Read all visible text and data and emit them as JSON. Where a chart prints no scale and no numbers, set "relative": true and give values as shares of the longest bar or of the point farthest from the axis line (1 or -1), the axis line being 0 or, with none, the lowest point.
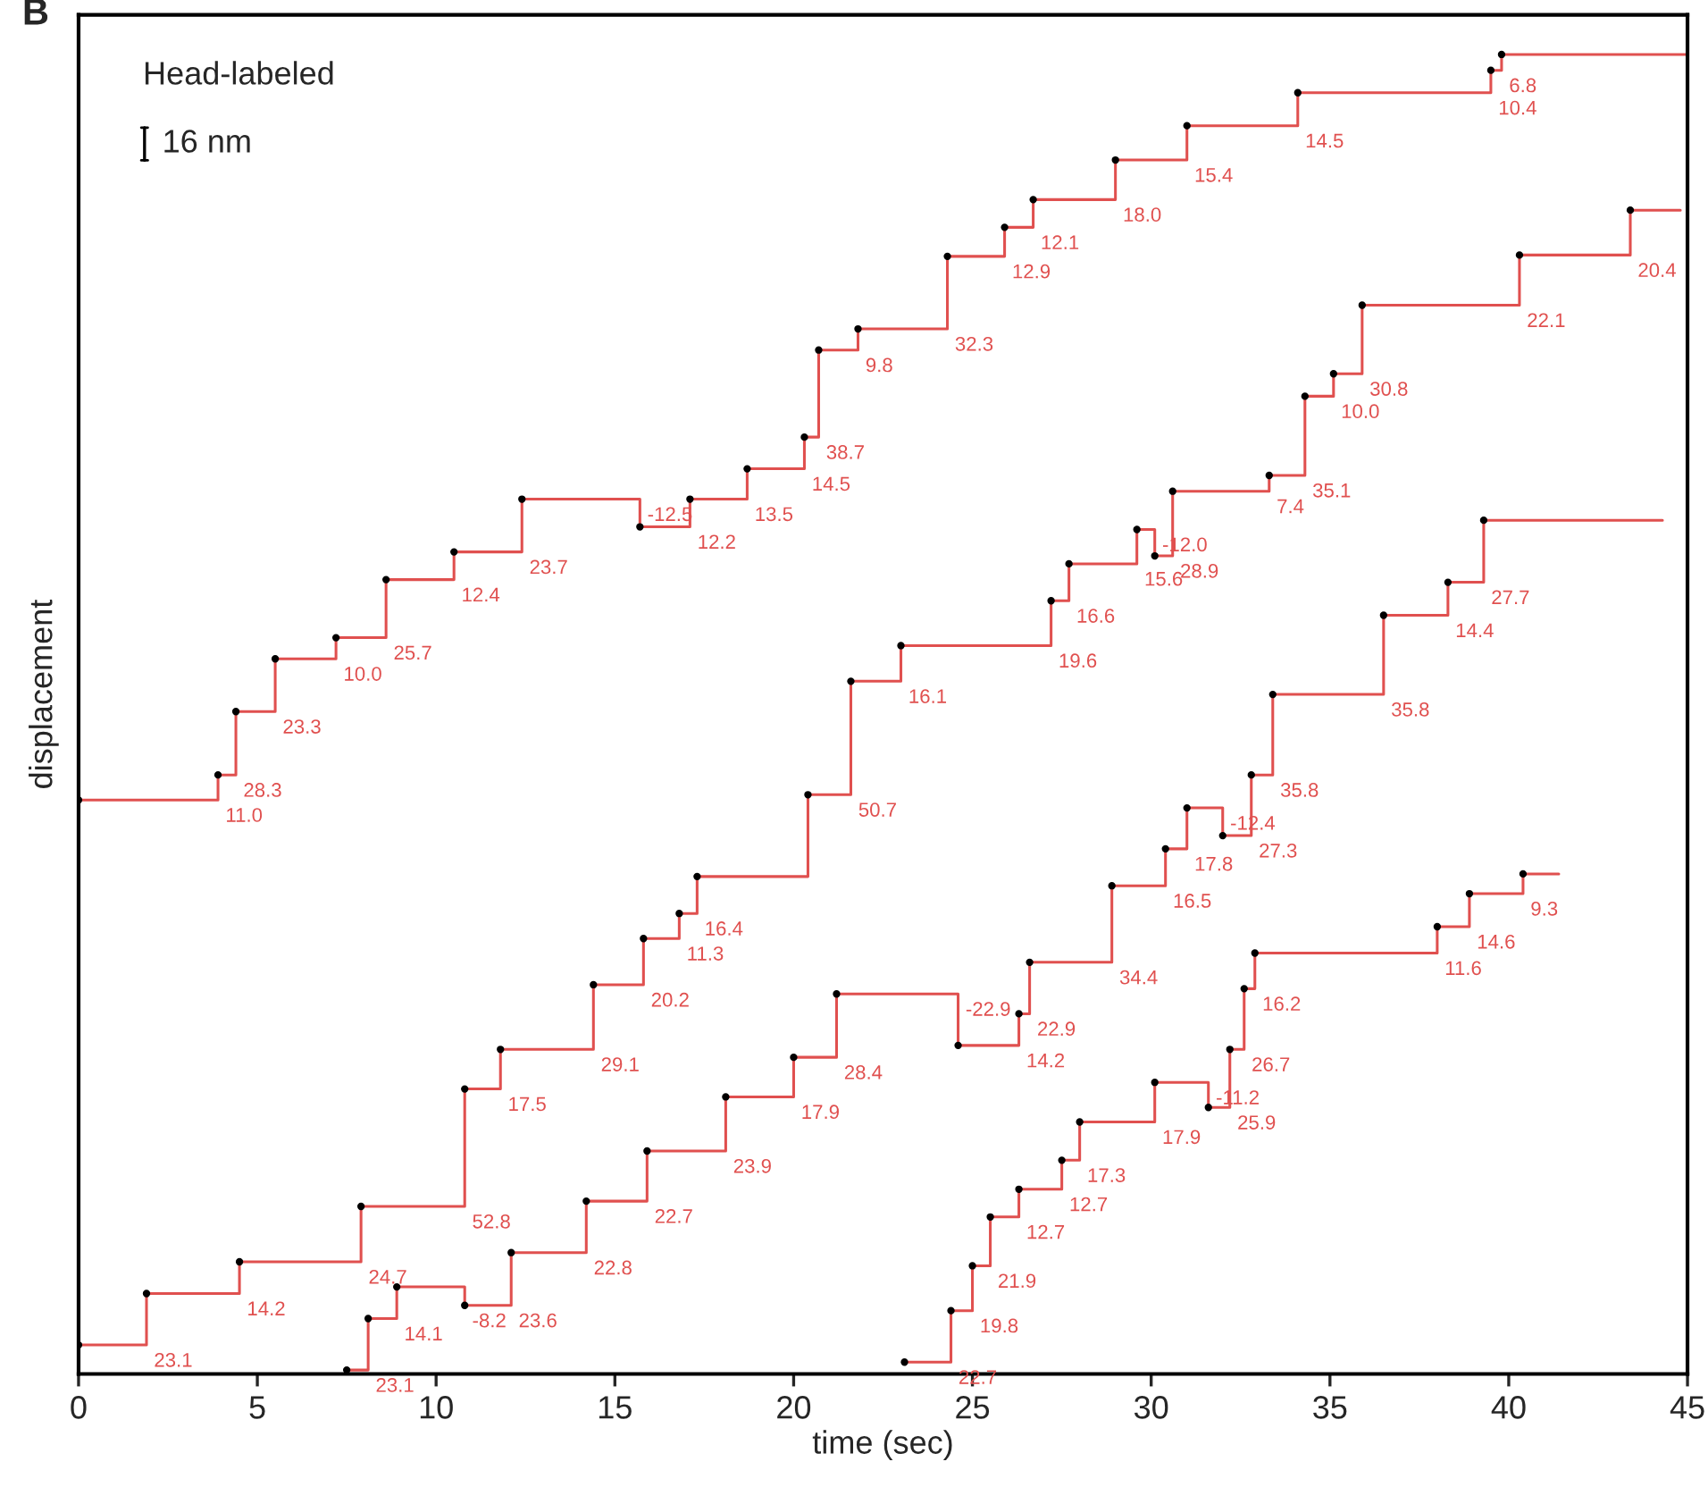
{
  "chart_data": {
    "type": "step",
    "relative": true,
    "xlabel": "time (sec)",
    "ylabel": "displacement",
    "xlim": [
      0,
      45
    ],
    "xticks": [
      0,
      5,
      10,
      15,
      20,
      25,
      30,
      35,
      40,
      45
    ],
    "line_style": "solid",
    "series": [
      {
        "type": "scatter",
        "marker": "circle",
        "color": "#000000",
        "x": [
          0,
          3.9,
          4.4,
          5.5,
          7.2,
          8.6,
          10.5,
          12.4,
          15.7,
          17.1,
          18.7,
          20.3,
          20.7,
          21.8,
          24.3,
          25.9,
          26.7,
          29.0,
          31.0,
          34.1,
          39.5,
          39.8
        ],
        "values": [
          0.435,
          0.454,
          0.502,
          0.542,
          0.558,
          0.602,
          0.623,
          0.663,
          0.642,
          0.663,
          0.686,
          0.71,
          0.776,
          0.792,
          0.847,
          0.869,
          0.89,
          0.92,
          0.946,
          0.971,
          0.988,
          1.0
        ]
      },
      {
        "color": "#e0504f",
        "x": [
          0,
          3.9,
          4.4,
          5.5,
          7.2,
          8.6,
          10.5,
          12.4,
          15.7,
          17.1,
          18.7,
          20.3,
          20.7,
          21.8,
          24.3,
          25.9,
          26.7,
          29.0,
          31.0,
          34.1,
          39.5,
          39.8,
          45.0
        ],
        "values": [
          0.435,
          0.454,
          0.502,
          0.542,
          0.558,
          0.602,
          0.623,
          0.663,
          0.642,
          0.663,
          0.686,
          0.71,
          0.776,
          0.792,
          0.847,
          0.869,
          0.89,
          0.92,
          0.946,
          0.971,
          0.988,
          1.0,
          1.0
        ]
      },
      {
        "type": "scatter",
        "marker": "circle",
        "color": "#000000",
        "x": [
          0,
          1.9,
          4.5,
          7.9,
          10.8,
          11.8,
          14.4,
          15.8,
          16.8,
          17.3,
          20.4,
          21.6,
          23.0,
          27.2,
          27.7,
          29.6,
          30.1,
          30.6,
          33.3,
          34.3,
          35.1,
          35.9,
          40.3,
          43.4
        ],
        "values": [
          0.022,
          0.061,
          0.085,
          0.127,
          0.216,
          0.246,
          0.295,
          0.33,
          0.349,
          0.377,
          0.439,
          0.525,
          0.552,
          0.586,
          0.614,
          0.64,
          0.62,
          0.669,
          0.681,
          0.741,
          0.758,
          0.81,
          0.848,
          0.882
        ]
      },
      {
        "color": "#e0504f",
        "x": [
          0,
          1.9,
          4.5,
          7.9,
          10.8,
          11.8,
          14.4,
          15.8,
          16.8,
          17.3,
          20.4,
          21.6,
          23.0,
          27.2,
          27.7,
          29.6,
          30.1,
          30.6,
          33.3,
          34.3,
          35.1,
          35.9,
          40.3,
          43.4,
          44.8
        ],
        "values": [
          0.022,
          0.061,
          0.085,
          0.127,
          0.216,
          0.246,
          0.295,
          0.33,
          0.349,
          0.377,
          0.439,
          0.525,
          0.552,
          0.586,
          0.614,
          0.64,
          0.62,
          0.669,
          0.681,
          0.741,
          0.758,
          0.81,
          0.848,
          0.882,
          0.882
        ]
      },
      {
        "type": "scatter",
        "marker": "circle",
        "color": "#000000",
        "x": [
          7.5,
          8.1,
          8.9,
          10.8,
          12.1,
          14.2,
          15.9,
          18.1,
          20.0,
          21.2,
          24.6,
          26.3,
          26.6,
          28.9,
          30.4,
          31.0,
          32.0,
          32.8,
          33.4,
          36.5,
          38.3,
          39.3
        ],
        "values": [
          0.003,
          0.042,
          0.066,
          0.052,
          0.092,
          0.131,
          0.169,
          0.21,
          0.24,
          0.288,
          0.249,
          0.273,
          0.312,
          0.37,
          0.398,
          0.429,
          0.408,
          0.454,
          0.515,
          0.575,
          0.6,
          0.647
        ]
      },
      {
        "color": "#e0504f",
        "x": [
          7.5,
          8.1,
          8.9,
          10.8,
          12.1,
          14.2,
          15.9,
          18.1,
          20.0,
          21.2,
          24.6,
          26.3,
          26.6,
          28.9,
          30.4,
          31.0,
          32.0,
          32.8,
          33.4,
          36.5,
          38.3,
          39.3,
          44.3
        ],
        "values": [
          0.003,
          0.042,
          0.066,
          0.052,
          0.092,
          0.131,
          0.169,
          0.21,
          0.24,
          0.288,
          0.249,
          0.273,
          0.312,
          0.37,
          0.398,
          0.429,
          0.408,
          0.454,
          0.515,
          0.575,
          0.6,
          0.647,
          0.647
        ]
      },
      {
        "type": "scatter",
        "marker": "circle",
        "color": "#000000",
        "x": [
          23.1,
          24.4,
          25.0,
          25.5,
          26.3,
          27.5,
          28.0,
          30.1,
          31.6,
          32.2,
          32.6,
          32.9,
          38.0,
          38.9,
          40.4
        ],
        "values": [
          0.009,
          0.048,
          0.082,
          0.119,
          0.14,
          0.162,
          0.191,
          0.221,
          0.202,
          0.246,
          0.292,
          0.319,
          0.339,
          0.364,
          0.379
        ]
      },
      {
        "color": "#e0504f",
        "x": [
          23.1,
          24.4,
          25.0,
          25.5,
          26.3,
          27.5,
          28.0,
          30.1,
          31.6,
          32.2,
          32.6,
          32.9,
          38.0,
          38.9,
          40.4,
          41.4
        ],
        "values": [
          0.009,
          0.048,
          0.082,
          0.119,
          0.14,
          0.162,
          0.191,
          0.221,
          0.202,
          0.246,
          0.292,
          0.319,
          0.339,
          0.364,
          0.379,
          0.379
        ]
      }
    ],
    "annotations": [
      "B",
      "Head-labeled",
      "16 nm",
      {
        "text": "11.0",
        "x": 3.9,
        "y": 0.435
      },
      {
        "text": "28.3",
        "x": 4.4,
        "y": 0.454
      },
      {
        "text": "23.3",
        "x": 5.5,
        "y": 0.502
      },
      {
        "text": "10.0",
        "x": 7.2,
        "y": 0.542
      },
      {
        "text": "25.7",
        "x": 8.6,
        "y": 0.558
      },
      {
        "text": "12.4",
        "x": 10.5,
        "y": 0.602
      },
      {
        "text": "23.7",
        "x": 12.4,
        "y": 0.623
      },
      {
        "text": "-12.5",
        "x": 15.7,
        "y": 0.663
      },
      {
        "text": "12.2",
        "x": 17.1,
        "y": 0.642
      },
      {
        "text": "13.5",
        "x": 18.7,
        "y": 0.663
      },
      {
        "text": "14.5",
        "x": 20.3,
        "y": 0.686
      },
      {
        "text": "38.7",
        "x": 20.7,
        "y": 0.71
      },
      {
        "text": "9.8",
        "x": 21.8,
        "y": 0.776
      },
      {
        "text": "32.3",
        "x": 24.3,
        "y": 0.792
      },
      {
        "text": "12.9",
        "x": 25.9,
        "y": 0.847
      },
      {
        "text": "12.1",
        "x": 26.7,
        "y": 0.869
      },
      {
        "text": "18.0",
        "x": 29.0,
        "y": 0.89
      },
      {
        "text": "15.4",
        "x": 31.0,
        "y": 0.92
      },
      {
        "text": "14.5",
        "x": 34.1,
        "y": 0.946
      },
      {
        "text": "10.4",
        "x": 39.5,
        "y": 0.971
      },
      {
        "text": "6.8",
        "x": 39.8,
        "y": 0.988
      },
      {
        "text": "23.1",
        "x": 1.9,
        "y": 0.022
      },
      {
        "text": "14.2",
        "x": 4.5,
        "y": 0.061
      },
      {
        "text": "24.7",
        "x": 7.9,
        "y": 0.085
      },
      {
        "text": "52.8",
        "x": 10.8,
        "y": 0.127
      },
      {
        "text": "17.5",
        "x": 11.8,
        "y": 0.216
      },
      {
        "text": "29.1",
        "x": 14.4,
        "y": 0.246
      },
      {
        "text": "20.2",
        "x": 15.8,
        "y": 0.295
      },
      {
        "text": "11.3",
        "x": 16.8,
        "y": 0.33
      },
      {
        "text": "16.4",
        "x": 17.3,
        "y": 0.349
      },
      {
        "text": "50.7",
        "x": 21.6,
        "y": 0.439
      },
      {
        "text": "16.1",
        "x": 23.0,
        "y": 0.525
      },
      {
        "text": "19.6",
        "x": 27.2,
        "y": 0.552
      },
      {
        "text": "16.6",
        "x": 27.7,
        "y": 0.586
      },
      {
        "text": "15.6",
        "x": 29.6,
        "y": 0.614
      },
      {
        "text": "-12.0",
        "x": 30.1,
        "y": 0.64
      },
      {
        "text": "28.9",
        "x": 30.6,
        "y": 0.62
      },
      {
        "text": "7.4",
        "x": 33.3,
        "y": 0.669
      },
      {
        "text": "35.1",
        "x": 34.3,
        "y": 0.681
      },
      {
        "text": "10.0",
        "x": 35.1,
        "y": 0.741
      },
      {
        "text": "30.8",
        "x": 35.9,
        "y": 0.758
      },
      {
        "text": "22.1",
        "x": 40.3,
        "y": 0.81
      },
      {
        "text": "20.4",
        "x": 43.4,
        "y": 0.848
      },
      {
        "text": "23.1",
        "x": 8.1,
        "y": 0.003
      },
      {
        "text": "14.1",
        "x": 8.9,
        "y": 0.042
      },
      {
        "text": "-8.2",
        "x": 10.8,
        "y": 0.052
      },
      {
        "text": "23.6",
        "x": 12.1,
        "y": 0.052
      },
      {
        "text": "22.8",
        "x": 14.2,
        "y": 0.092
      },
      {
        "text": "22.7",
        "x": 15.9,
        "y": 0.131
      },
      {
        "text": "23.9",
        "x": 18.1,
        "y": 0.169
      },
      {
        "text": "17.9",
        "x": 20.0,
        "y": 0.21
      },
      {
        "text": "28.4",
        "x": 21.2,
        "y": 0.24
      },
      {
        "text": "-22.9",
        "x": 24.6,
        "y": 0.288
      },
      {
        "text": "14.2",
        "x": 26.3,
        "y": 0.249
      },
      {
        "text": "22.9",
        "x": 26.6,
        "y": 0.273
      },
      {
        "text": "34.4",
        "x": 28.9,
        "y": 0.312
      },
      {
        "text": "16.5",
        "x": 30.4,
        "y": 0.37
      },
      {
        "text": "17.8",
        "x": 31.0,
        "y": 0.398
      },
      {
        "text": "-12.4",
        "x": 32.0,
        "y": 0.429
      },
      {
        "text": "27.3",
        "x": 32.8,
        "y": 0.408
      },
      {
        "text": "35.8",
        "x": 33.4,
        "y": 0.454
      },
      {
        "text": "35.8",
        "x": 36.5,
        "y": 0.515
      },
      {
        "text": "14.4",
        "x": 38.3,
        "y": 0.575
      },
      {
        "text": "27.7",
        "x": 39.3,
        "y": 0.6
      },
      {
        "text": "22.7",
        "x": 24.4,
        "y": 0.009
      },
      {
        "text": "19.8",
        "x": 25.0,
        "y": 0.048
      },
      {
        "text": "21.9",
        "x": 25.5,
        "y": 0.082
      },
      {
        "text": "12.7",
        "x": 26.3,
        "y": 0.119
      },
      {
        "text": "12.7",
        "x": 27.5,
        "y": 0.14
      },
      {
        "text": "17.3",
        "x": 28.0,
        "y": 0.162
      },
      {
        "text": "17.9",
        "x": 30.1,
        "y": 0.191
      },
      {
        "text": "-11.2",
        "x": 31.6,
        "y": 0.221
      },
      {
        "text": "25.9",
        "x": 32.2,
        "y": 0.202
      },
      {
        "text": "26.7",
        "x": 32.6,
        "y": 0.246
      },
      {
        "text": "16.2",
        "x": 32.9,
        "y": 0.292
      },
      {
        "text": "11.6",
        "x": 38.0,
        "y": 0.319
      },
      {
        "text": "14.6",
        "x": 38.9,
        "y": 0.339
      },
      {
        "text": "9.3",
        "x": 40.4,
        "y": 0.364
      }
    ]
  }
}
